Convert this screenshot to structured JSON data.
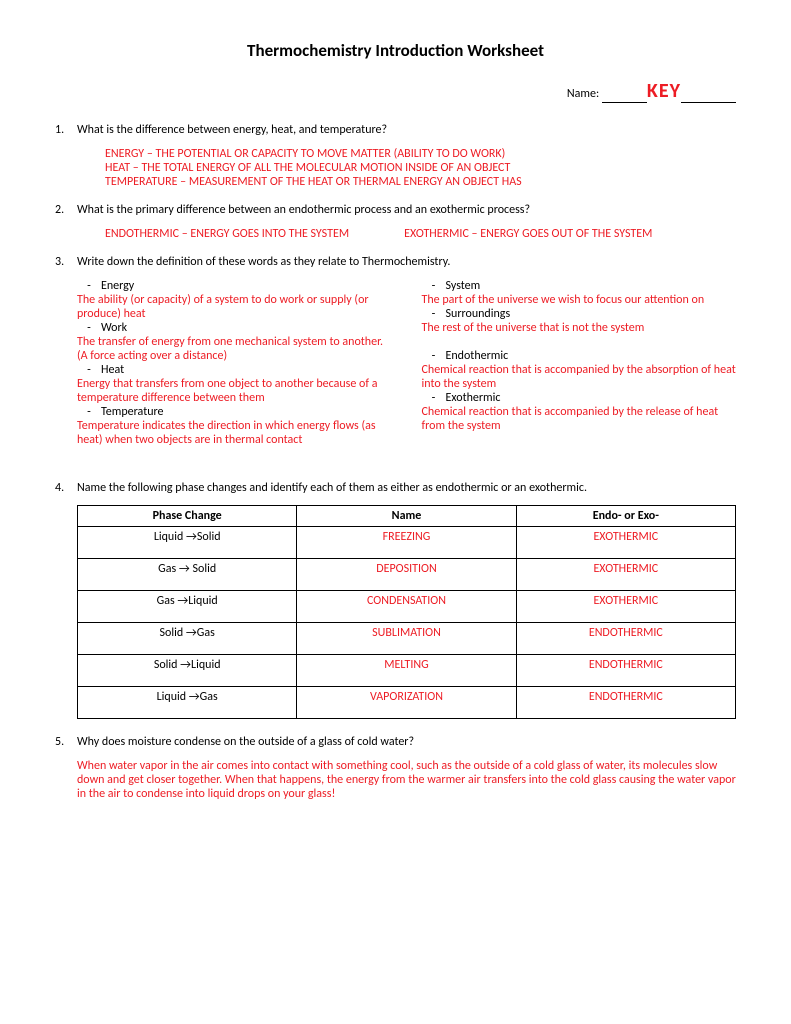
{
  "title": "Thermochemistry Introduction Worksheet",
  "name_label": "Name:",
  "key_text": "KEY",
  "q1": {
    "num": "1.",
    "text": "What is the difference between energy, heat, and temperature?",
    "ans1": "ENERGY – THE POTENTIAL OR CAPACITY TO MOVE MATTER (ABILITY TO DO WORK)",
    "ans2": "HEAT – THE TOTAL ENERGY OF ALL THE MOLECULAR MOTION INSIDE OF AN OBJECT",
    "ans3": "TEMPERATURE – MEASUREMENT OF THE HEAT OR THERMAL ENERGY AN OBJECT HAS"
  },
  "q2": {
    "num": "2.",
    "text": "What is the primary difference between an endothermic process and an exothermic process?",
    "endo": "ENDOTHERMIC – ENERGY GOES INTO THE SYSTEM",
    "exo": "EXOTHERMIC – ENERGY GOES OUT OF THE SYSTEM"
  },
  "q3": {
    "num": "3.",
    "text": "Write down the definition of these words as they relate to Thermochemistry.",
    "left": {
      "t1": "Energy",
      "d1": "The ability (or capacity) of a system to do work or supply (or produce) heat",
      "t2": "Work",
      "d2": "The transfer of energy from one mechanical system to another. (A force acting over a distance)",
      "t3": "Heat",
      "d3": "Energy that transfers from one object to another because of a temperature difference between them",
      "t4": "Temperature",
      "d4": "Temperature indicates the direction in which energy flows (as heat) when two objects are in thermal contact"
    },
    "right": {
      "t1": "System",
      "d1": "The part of the universe we wish to focus our attention on",
      "t2": "Surroundings",
      "d2": "The rest of the universe that is not the system",
      "t3": "Endothermic",
      "d3": "Chemical reaction that is accompanied by the absorption of heat into the system",
      "t4": "Exothermic",
      "d4": "Chemical reaction that is accompanied by the release of heat from the system"
    }
  },
  "q4": {
    "num": "4.",
    "text": "Name the following phase changes and identify each of them as either as endothermic or an exothermic.",
    "headers": {
      "c1": "Phase Change",
      "c2": "Name",
      "c3": "Endo- or Exo-"
    },
    "rows": [
      {
        "phase": "Liquid →Solid",
        "name": "FREEZING",
        "type": "EXOTHERMIC"
      },
      {
        "phase": "Gas → Solid",
        "name": "DEPOSITION",
        "type": "EXOTHERMIC"
      },
      {
        "phase": "Gas →Liquid",
        "name": "CONDENSATION",
        "type": "EXOTHERMIC"
      },
      {
        "phase": "Solid →Gas",
        "name": "SUBLIMATION",
        "type": "ENDOTHERMIC"
      },
      {
        "phase": "Solid →Liquid",
        "name": "MELTING",
        "type": "ENDOTHERMIC"
      },
      {
        "phase": "Liquid →Gas",
        "name": "VAPORIZATION",
        "type": "ENDOTHERMIC"
      }
    ]
  },
  "q5": {
    "num": "5.",
    "text": "Why does moisture condense on the outside of a glass of cold water?",
    "ans": "When water vapor in the air comes into contact with something cool, such as the outside of a cold glass of water, its molecules slow down and get closer together. When that happens, the energy from the warmer air transfers into the cold glass causing the water vapor in the air to condense into liquid drops on your glass!"
  }
}
